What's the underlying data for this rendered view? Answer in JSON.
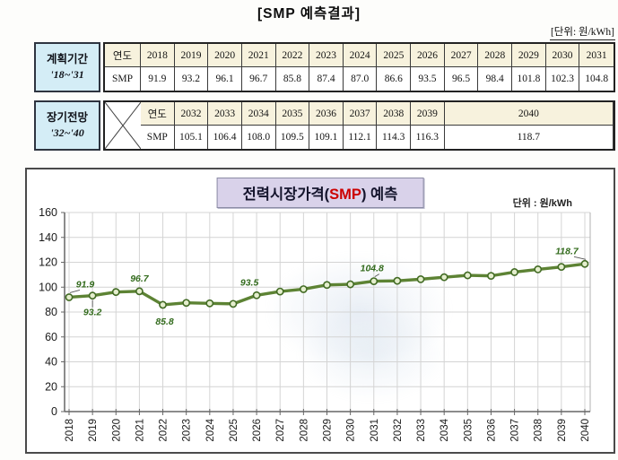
{
  "doc": {
    "title": "[SMP 예측결과]",
    "unit_note": "[단위: 원/kWh]"
  },
  "table1": {
    "section_label_line1": "계획기간",
    "section_label_line2": "'18~'31",
    "row1_header": "연도",
    "row2_header": "SMP",
    "years": [
      "2018",
      "2019",
      "2020",
      "2021",
      "2022",
      "2023",
      "2024",
      "2025",
      "2026",
      "2027",
      "2028",
      "2029",
      "2030",
      "2031"
    ],
    "values": [
      "91.9",
      "93.2",
      "96.1",
      "96.7",
      "85.8",
      "87.4",
      "87.0",
      "86.6",
      "93.5",
      "96.5",
      "98.4",
      "101.8",
      "102.3",
      "104.8"
    ]
  },
  "table2": {
    "section_label_line1": "장기전망",
    "section_label_line2": "'32~'40",
    "row1_header": "연도",
    "row2_header": "SMP",
    "years": [
      "2032",
      "2033",
      "2034",
      "2035",
      "2036",
      "2037",
      "2038",
      "2039",
      "2040"
    ],
    "values": [
      "105.1",
      "106.4",
      "108.0",
      "109.5",
      "109.1",
      "112.1",
      "114.3",
      "116.3",
      "118.7"
    ]
  },
  "chart": {
    "title_prefix": "전력시장가격(",
    "title_accent": "SMP",
    "title_suffix": ") 예측",
    "unit_label": "단위 : 원/kWh"
  },
  "chart_data": {
    "type": "line",
    "title": "전력시장가격(SMP) 예측",
    "unit": "원/kWh",
    "x": [
      2018,
      2019,
      2020,
      2021,
      2022,
      2023,
      2024,
      2025,
      2026,
      2027,
      2028,
      2029,
      2030,
      2031,
      2032,
      2033,
      2034,
      2035,
      2036,
      2037,
      2038,
      2039,
      2040
    ],
    "values": [
      91.9,
      93.2,
      96.1,
      96.7,
      85.8,
      87.4,
      87.0,
      86.6,
      93.5,
      96.5,
      98.4,
      101.8,
      102.3,
      104.8,
      105.1,
      106.4,
      108.0,
      109.5,
      109.1,
      112.1,
      114.3,
      116.3,
      118.7
    ],
    "ylim": [
      0,
      160
    ],
    "ytick_step": 20,
    "yticks": [
      0,
      20,
      40,
      60,
      80,
      100,
      120,
      140,
      160
    ],
    "grid": true,
    "legend": "none",
    "labeled_points": [
      {
        "year": 2018,
        "label": "91.9",
        "placement": "above",
        "dx": 18,
        "leader": true
      },
      {
        "year": 2019,
        "label": "93.2",
        "placement": "below",
        "dx": 0,
        "leader": true
      },
      {
        "year": 2021,
        "label": "96.7",
        "placement": "above",
        "dx": 0,
        "leader": false
      },
      {
        "year": 2022,
        "label": "85.8",
        "placement": "below",
        "dx": 2,
        "leader": false
      },
      {
        "year": 2026,
        "label": "93.5",
        "placement": "above",
        "dx": -8,
        "leader": false
      },
      {
        "year": 2031,
        "label": "104.8",
        "placement": "above",
        "dx": -2,
        "leader": true
      },
      {
        "year": 2040,
        "label": "118.7",
        "placement": "above",
        "dx": -20,
        "leader": true
      }
    ]
  },
  "colors": {
    "accent_red": "#cc0000",
    "table_header_bg": "#f7f2dd",
    "section_box_bg": "#d4edf6",
    "chart_title_bg": "#d9d2ea",
    "line_color": "#5d8334",
    "marker_fill": "#e4eecd",
    "marker_stroke": "#426b24",
    "point_label_color": "#336b1d",
    "grid_color": "#d4d4d4",
    "axis_color": "#666666"
  }
}
